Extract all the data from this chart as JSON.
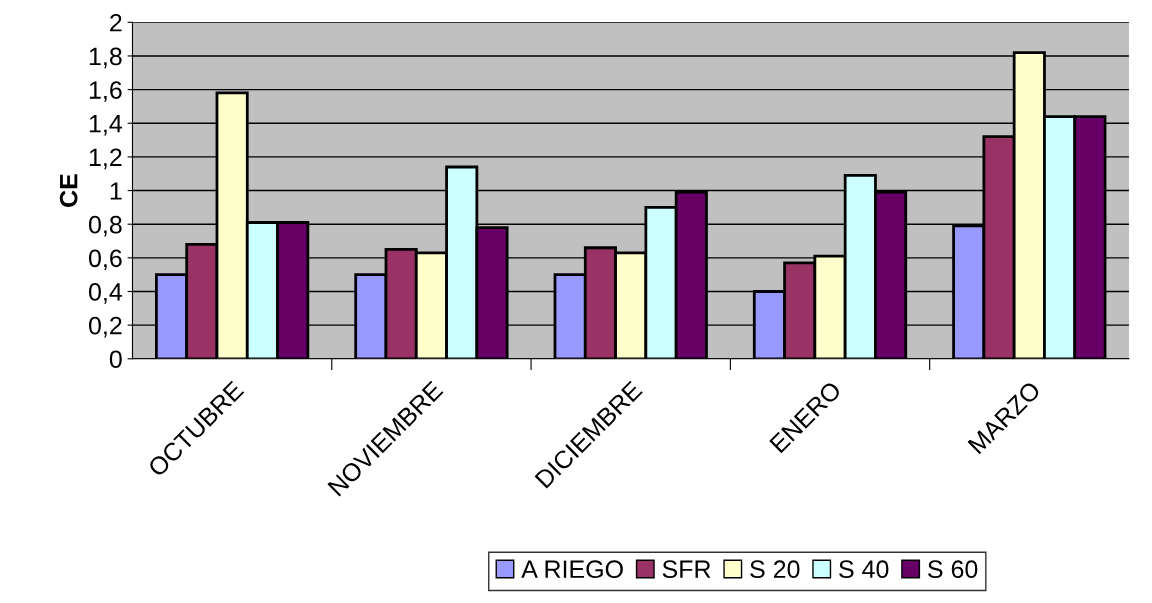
{
  "chart_data": {
    "type": "bar",
    "ylabel": "CE",
    "categories": [
      "OCTUBRE",
      "NOVIEMBRE",
      "DICIEMBRE",
      "ENERO",
      "MARZO"
    ],
    "series": [
      {
        "name": "A RIEGO",
        "color": "#9999ff",
        "values": [
          0.5,
          0.5,
          0.5,
          0.4,
          0.79
        ]
      },
      {
        "name": "SFR",
        "color": "#993366",
        "values": [
          0.68,
          0.65,
          0.66,
          0.57,
          1.32
        ]
      },
      {
        "name": "S 20",
        "color": "#ffffcc",
        "values": [
          1.58,
          0.63,
          0.63,
          0.61,
          1.82
        ]
      },
      {
        "name": "S 40",
        "color": "#ccffff",
        "values": [
          0.81,
          1.14,
          0.9,
          1.09,
          1.44
        ]
      },
      {
        "name": "S 60",
        "color": "#660066",
        "values": [
          0.81,
          0.78,
          0.99,
          0.99,
          1.44
        ]
      }
    ],
    "ylim": [
      0,
      2
    ],
    "yticks": [
      0,
      {
        "value": 0.2,
        "label": "0,2"
      },
      {
        "value": 0.4,
        "label": "0,4"
      },
      {
        "value": 0.6,
        "label": "0,6"
      },
      {
        "value": 0.8,
        "label": "0,8"
      },
      1,
      {
        "value": 1.2,
        "label": "1,2"
      },
      {
        "value": 1.4,
        "label": "1,4"
      },
      {
        "value": 1.6,
        "label": "1,6"
      },
      {
        "value": 1.8,
        "label": "1,8"
      },
      2
    ],
    "grid": "y",
    "legend": "bottom"
  }
}
